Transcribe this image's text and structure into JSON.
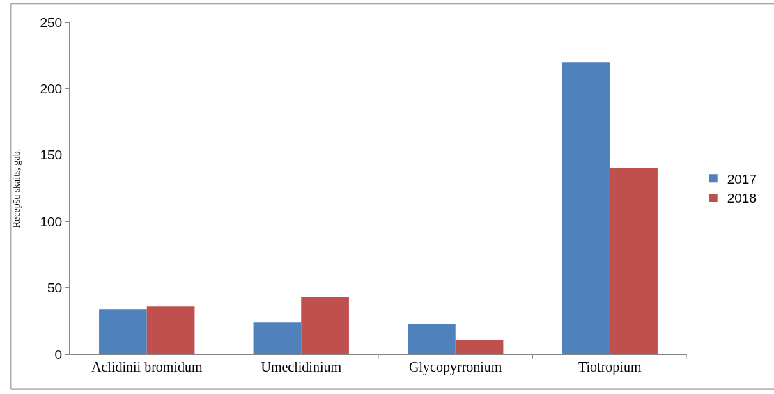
{
  "chart_data": {
    "type": "bar",
    "ylabel": "Recepšu skaits, gab.",
    "categories": [
      "Aclidinii bromidum",
      "Umeclidinium",
      "Glycopyrronium",
      "Tiotropium"
    ],
    "series": [
      {
        "name": "2017",
        "color": "#4f81bd",
        "values": [
          34,
          24,
          23,
          220
        ]
      },
      {
        "name": "2018",
        "color": "#c0504d",
        "values": [
          36,
          43,
          11,
          140
        ]
      }
    ],
    "ylim": [
      0,
      250
    ],
    "yticks": [
      0,
      50,
      100,
      150,
      200,
      250
    ],
    "grid": false,
    "legend": "right"
  }
}
